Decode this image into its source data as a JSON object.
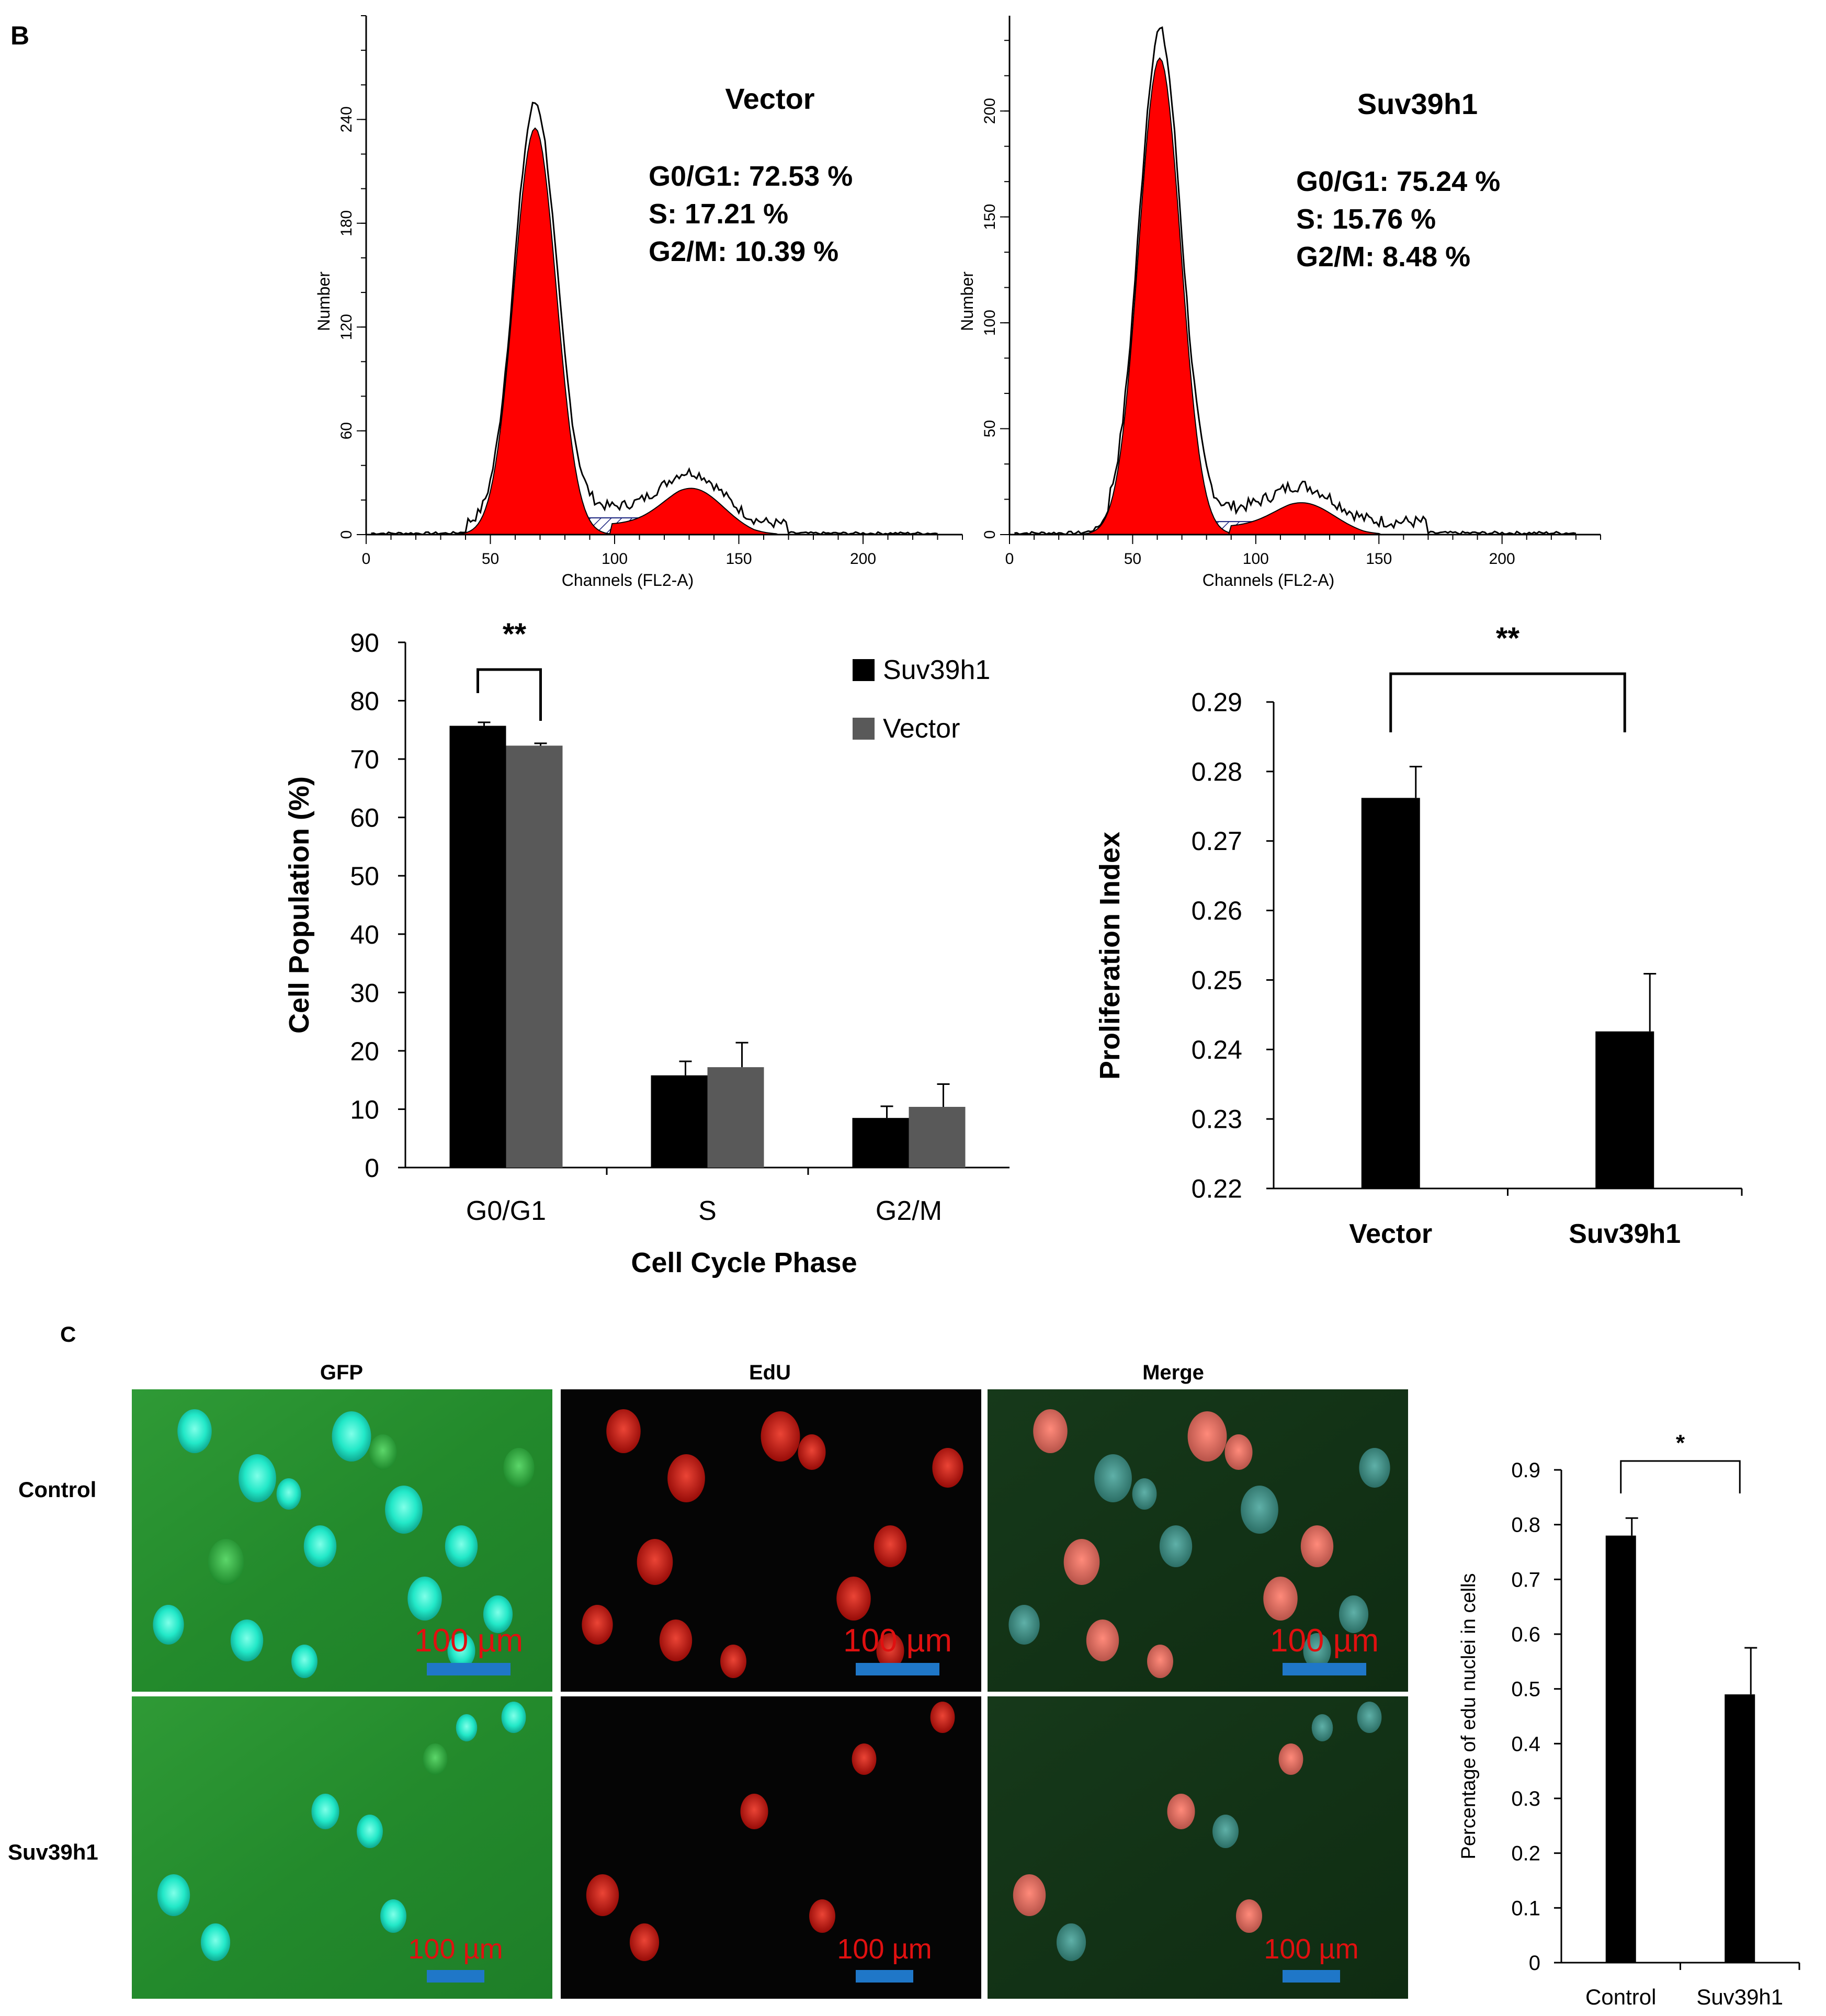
{
  "panels": {
    "b_letter": "B",
    "c_letter": "C"
  },
  "colors": {
    "red": "#ff0000",
    "black": "#000000",
    "gray": "#595959",
    "scale": "#1f77c8",
    "scale_text": "#e01010"
  },
  "chart_data": [
    {
      "type": "area",
      "name": "histogram-vector",
      "title": "Vector",
      "stats": [
        "G0/G1: 72.53 %",
        "S: 17.21 %",
        "G2/M: 10.39 %"
      ],
      "xlabel": "Channels (FL2-A)",
      "ylabel": "Number",
      "xlim": [
        0,
        240
      ],
      "ylim": [
        0,
        300
      ],
      "xticks": [
        0,
        50,
        100,
        150,
        200
      ],
      "yticks": [
        0,
        60,
        120,
        180,
        240
      ],
      "peaks": {
        "g1_channel": 68,
        "g1_height": 235,
        "g2_channel": 132,
        "g2_height": 22
      }
    },
    {
      "type": "area",
      "name": "histogram-suv39h1",
      "title": "Suv39h1",
      "stats": [
        "G0/G1: 75.24 %",
        "S: 15.76 %",
        "G2/M: 8.48 %"
      ],
      "xlabel": "Channels (FL2-A)",
      "ylabel": "Number",
      "xlim": [
        0,
        240
      ],
      "ylim": [
        0,
        245
      ],
      "xticks": [
        0,
        50,
        100,
        150,
        200
      ],
      "yticks": [
        0,
        50,
        100,
        150,
        200
      ],
      "peaks": {
        "g1_channel": 61,
        "g1_height": 225,
        "g2_channel": 120,
        "g2_height": 12
      }
    },
    {
      "type": "bar",
      "name": "cell-cycle-bar",
      "categories": [
        "G0/G1",
        "S",
        "G2/M"
      ],
      "series": [
        {
          "name": "Suv39h1",
          "values": [
            75.7,
            15.8,
            8.5
          ],
          "errors": [
            0.6,
            2.4,
            2.0
          ]
        },
        {
          "name": "Vector",
          "values": [
            72.3,
            17.2,
            10.4
          ],
          "errors": [
            0.4,
            4.2,
            3.9
          ]
        }
      ],
      "xlabel": "Cell Cycle Phase",
      "ylabel": "Cell Population (%)",
      "ylim": [
        0,
        90
      ],
      "yticks": [
        0,
        10,
        20,
        30,
        40,
        50,
        60,
        70,
        80,
        90
      ],
      "significance": "**",
      "legend": "top-right"
    },
    {
      "type": "bar",
      "name": "proliferation-bar",
      "categories": [
        "Vector",
        "Suv39h1"
      ],
      "values": [
        0.2762,
        0.2426
      ],
      "errors": [
        0.0045,
        0.0083
      ],
      "ylabel": "Proliferation Index",
      "ylim": [
        0.22,
        0.29
      ],
      "yticks": [
        "0.22",
        "0.23",
        "0.24",
        "0.25",
        "0.26",
        "0.27",
        "0.28",
        "0.29"
      ],
      "significance": "**"
    },
    {
      "type": "bar",
      "name": "edu-bar",
      "categories": [
        "Control",
        "Suv39h1"
      ],
      "values": [
        0.78,
        0.49
      ],
      "errors": [
        0.032,
        0.085
      ],
      "ylabel": "Percentage of edu nuclei in cells",
      "ylim": [
        0,
        0.9
      ],
      "yticks": [
        "0",
        "0.1",
        "0.2",
        "0.3",
        "0.4",
        "0.5",
        "0.6",
        "0.7",
        "0.8",
        "0.9"
      ],
      "significance": "*"
    }
  ],
  "micrographs": {
    "columns": [
      "GFP",
      "EdU",
      "Merge"
    ],
    "rows": [
      "Control",
      "Suv39h1"
    ],
    "scale_bar": "100 µm"
  }
}
